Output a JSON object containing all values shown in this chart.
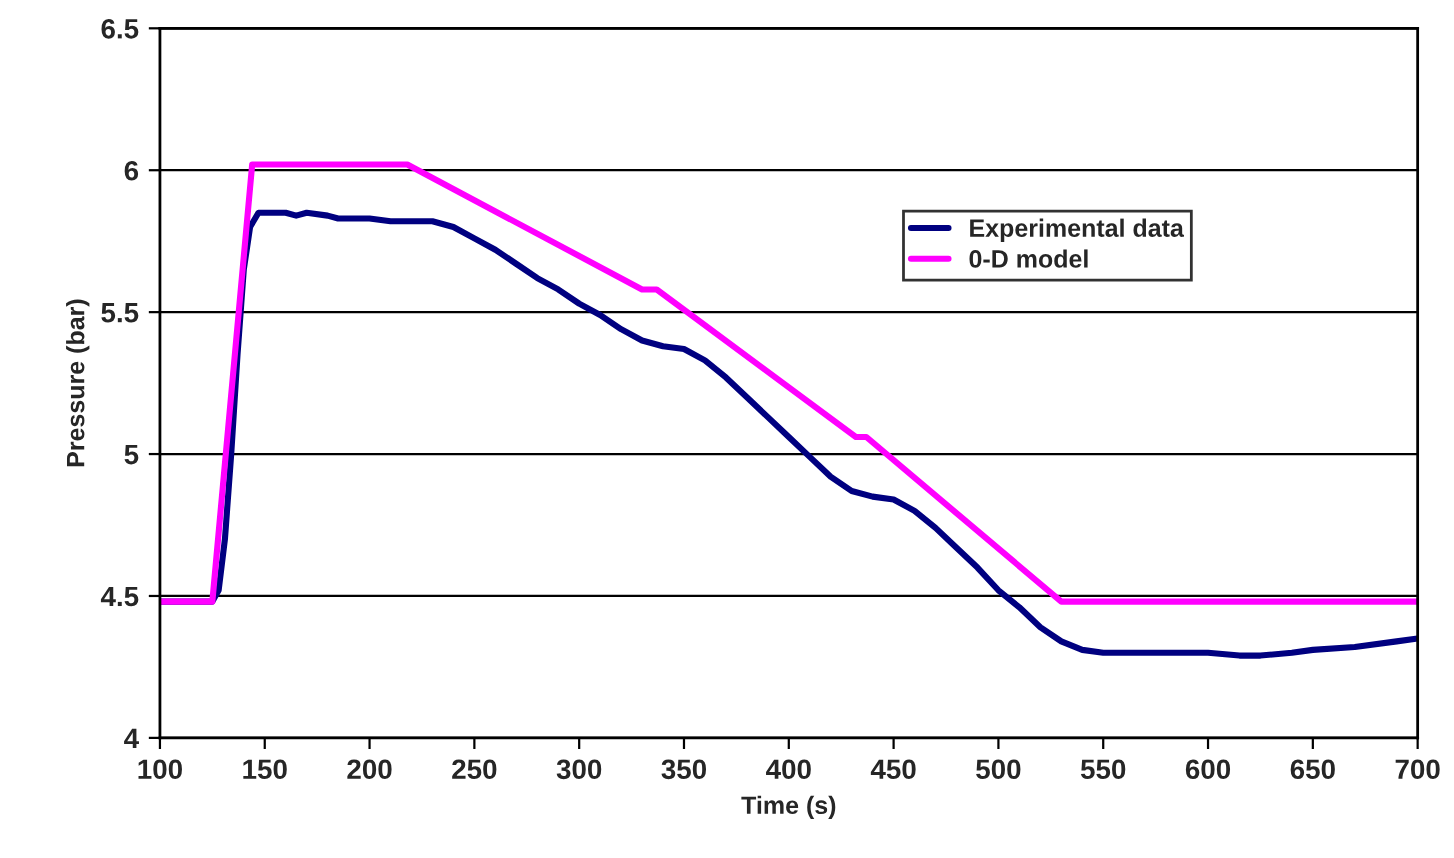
{
  "chart_data": {
    "type": "line",
    "xlabel": "Time (s)",
    "ylabel": "Pressure (bar)",
    "xlim": [
      100,
      700
    ],
    "xticks": [
      100,
      150,
      200,
      250,
      300,
      350,
      400,
      450,
      500,
      550,
      600,
      650,
      700
    ],
    "ylim": [
      4,
      6.5
    ],
    "yticks": [
      4,
      4.5,
      5,
      5.5,
      6,
      6.5
    ],
    "grid": "y",
    "legend": "top right",
    "marker": "none",
    "line_style": "solid",
    "series": [
      {
        "name": "Experimental data",
        "color": "#000080",
        "x": [
          100,
          125,
          128,
          131,
          134,
          137,
          140,
          143,
          147,
          160,
          165,
          170,
          180,
          185,
          200,
          210,
          230,
          240,
          250,
          260,
          270,
          280,
          290,
          300,
          310,
          320,
          330,
          340,
          350,
          360,
          370,
          380,
          390,
          400,
          410,
          420,
          430,
          440,
          450,
          460,
          470,
          480,
          490,
          500,
          510,
          520,
          530,
          540,
          550,
          600,
          615,
          625,
          640,
          650,
          670,
          690,
          700
        ],
        "values": [
          4.48,
          4.48,
          4.52,
          4.7,
          5.0,
          5.35,
          5.65,
          5.8,
          5.85,
          5.85,
          5.84,
          5.85,
          5.84,
          5.83,
          5.83,
          5.82,
          5.82,
          5.8,
          5.76,
          5.72,
          5.67,
          5.62,
          5.58,
          5.53,
          5.49,
          5.44,
          5.4,
          5.38,
          5.37,
          5.33,
          5.27,
          5.2,
          5.13,
          5.06,
          4.99,
          4.92,
          4.87,
          4.85,
          4.84,
          4.8,
          4.74,
          4.67,
          4.6,
          4.52,
          4.46,
          4.39,
          4.34,
          4.31,
          4.3,
          4.3,
          4.29,
          4.29,
          4.3,
          4.31,
          4.32,
          4.34,
          4.35
        ]
      },
      {
        "name": "0-D model",
        "color": "#ff00ff",
        "x": [
          100,
          125,
          144,
          218,
          330,
          337,
          432,
          437,
          530,
          700
        ],
        "values": [
          4.48,
          4.48,
          6.02,
          6.02,
          5.58,
          5.58,
          5.06,
          5.06,
          4.48,
          4.48
        ]
      }
    ]
  }
}
